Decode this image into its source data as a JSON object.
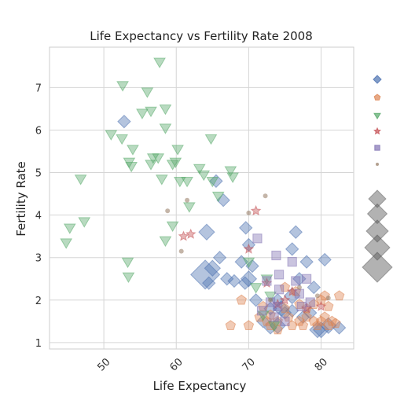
{
  "chart_data": {
    "type": "scatter",
    "title": "Life Expectancy vs Fertility Rate 2008",
    "xlabel": "Life Expectancy",
    "ylabel": "Fertility Rate",
    "xlim": [
      42.5,
      84.5
    ],
    "ylim": [
      0.85,
      7.95
    ],
    "xticks": [
      50,
      60,
      70,
      80
    ],
    "yticks": [
      1,
      2,
      3,
      4,
      5,
      6,
      7
    ],
    "grid": true,
    "legend_position": "right",
    "series": [
      {
        "marker": "diamond",
        "color": "#4c72b0",
        "points": [
          [
            52.8,
            6.2,
            2
          ],
          [
            65.5,
            4.8,
            2
          ],
          [
            66.5,
            4.35,
            2
          ],
          [
            64.2,
            3.6,
            3
          ],
          [
            66,
            3.0,
            2
          ],
          [
            65,
            2.75,
            3
          ],
          [
            64,
            2.6,
            5
          ],
          [
            64.5,
            2.4,
            2
          ],
          [
            67,
            2.5,
            2
          ],
          [
            68,
            2.45,
            2
          ],
          [
            69.5,
            2.4,
            2
          ],
          [
            70,
            2.5,
            3
          ],
          [
            69,
            2.9,
            2
          ],
          [
            69.6,
            3.7,
            2
          ],
          [
            70,
            3.3,
            2
          ],
          [
            70.5,
            2.8,
            2
          ],
          [
            71,
            2.0,
            2
          ],
          [
            72,
            1.5,
            2
          ],
          [
            73,
            1.8,
            2
          ],
          [
            74,
            2.0,
            2
          ],
          [
            74,
            1.4,
            3
          ],
          [
            75,
            1.7,
            2
          ],
          [
            76,
            2.1,
            3
          ],
          [
            77,
            2.5,
            2
          ],
          [
            78,
            2.9,
            2
          ],
          [
            79,
            2.3,
            2
          ],
          [
            76.5,
            3.6,
            2
          ],
          [
            76,
            3.2,
            2
          ],
          [
            79.5,
            1.3,
            3
          ],
          [
            80,
            1.3,
            3
          ],
          [
            81,
            1.4,
            3
          ],
          [
            82.5,
            1.35,
            2
          ],
          [
            80.5,
            2.95,
            2
          ],
          [
            76,
            1.75,
            2
          ],
          [
            77.5,
            1.6,
            2
          ],
          [
            73,
            1.35,
            2
          ],
          [
            78.5,
            1.7,
            2
          ],
          [
            74.5,
            1.8,
            3
          ]
        ]
      },
      {
        "marker": "pentagon",
        "color": "#dd8452",
        "points": [
          [
            67.5,
            1.4,
            1
          ],
          [
            69,
            2.0,
            1
          ],
          [
            70,
            1.4,
            1
          ],
          [
            71.5,
            1.6,
            1
          ],
          [
            72.5,
            1.5,
            1
          ],
          [
            73,
            1.4,
            1
          ],
          [
            74,
            1.5,
            1
          ],
          [
            75,
            1.8,
            1
          ],
          [
            75.5,
            1.6,
            1
          ],
          [
            76,
            1.4,
            1
          ],
          [
            77,
            1.5,
            1
          ],
          [
            77.5,
            1.4,
            1
          ],
          [
            78,
            1.6,
            1
          ],
          [
            79,
            1.5,
            1
          ],
          [
            79.5,
            1.4,
            1
          ],
          [
            80,
            1.5,
            1
          ],
          [
            80.5,
            1.6,
            1
          ],
          [
            81,
            1.4,
            1
          ],
          [
            81.5,
            1.5,
            1
          ],
          [
            82,
            1.45,
            1
          ],
          [
            82.5,
            2.1,
            1
          ],
          [
            80,
            2.0,
            1
          ],
          [
            79,
            1.9,
            1
          ],
          [
            78,
            1.8,
            1
          ],
          [
            77,
            1.9,
            1
          ],
          [
            76.5,
            2.2,
            1
          ],
          [
            75,
            2.3,
            1
          ],
          [
            74,
            1.3,
            1
          ],
          [
            73,
            1.65,
            1
          ],
          [
            72,
            1.85,
            1
          ],
          [
            80.5,
            2.1,
            1
          ],
          [
            81,
            1.85,
            1
          ]
        ]
      },
      {
        "marker": "triangle-down",
        "color": "#55a868",
        "points": [
          [
            57.7,
            7.6
          ],
          [
            52.6,
            7.05
          ],
          [
            56,
            6.9
          ],
          [
            55.3,
            6.4
          ],
          [
            56.5,
            6.45
          ],
          [
            58.5,
            6.5
          ],
          [
            58.5,
            6.05
          ],
          [
            51,
            5.9
          ],
          [
            52.5,
            5.8
          ],
          [
            54,
            5.55
          ],
          [
            53.5,
            5.25
          ],
          [
            53.8,
            5.15
          ],
          [
            56.8,
            5.35
          ],
          [
            57.5,
            5.35
          ],
          [
            56.5,
            5.2
          ],
          [
            58,
            4.85
          ],
          [
            59.5,
            5.2
          ],
          [
            59.9,
            5.25
          ],
          [
            60.2,
            5.55
          ],
          [
            64.8,
            5.8
          ],
          [
            63.2,
            5.1
          ],
          [
            63.8,
            4.95
          ],
          [
            65,
            4.8
          ],
          [
            67.5,
            5.05
          ],
          [
            67.8,
            4.9
          ],
          [
            60.5,
            4.8
          ],
          [
            61.5,
            4.8
          ],
          [
            61.8,
            4.2
          ],
          [
            59.5,
            3.75
          ],
          [
            58.5,
            3.4
          ],
          [
            46.8,
            4.85
          ],
          [
            47.3,
            3.85
          ],
          [
            45.3,
            3.7
          ],
          [
            44.8,
            3.35
          ],
          [
            53.3,
            2.9
          ],
          [
            53.4,
            2.55
          ],
          [
            70,
            2.9
          ],
          [
            71,
            2.3
          ],
          [
            72.5,
            2.5
          ],
          [
            73,
            2.1
          ],
          [
            72,
            1.65
          ],
          [
            73.5,
            1.4
          ],
          [
            65.8,
            4.45
          ]
        ]
      },
      {
        "marker": "star",
        "color": "#c44e52",
        "points": [
          [
            61,
            3.5
          ],
          [
            62,
            3.55
          ],
          [
            71,
            4.1
          ],
          [
            70,
            3.2
          ],
          [
            72.5,
            2.4
          ],
          [
            74,
            1.9
          ],
          [
            75,
            2.0
          ],
          [
            78,
            1.8
          ],
          [
            76,
            2.2
          ],
          [
            80,
            1.85
          ]
        ]
      },
      {
        "marker": "square",
        "color": "#8172b3",
        "points": [
          [
            71.2,
            3.45,
            2
          ],
          [
            72.5,
            2.45,
            2
          ],
          [
            73,
            1.95,
            2
          ],
          [
            73.8,
            3.05,
            2
          ],
          [
            74.2,
            2.6,
            2
          ],
          [
            74.2,
            2.25,
            2
          ],
          [
            74,
            1.85,
            2
          ],
          [
            73.5,
            1.6,
            2
          ],
          [
            75,
            1.5,
            2
          ],
          [
            76.5,
            2.45,
            2
          ],
          [
            77,
            2.15,
            2
          ],
          [
            77.3,
            1.85,
            2
          ],
          [
            78,
            2.5,
            2
          ],
          [
            78.5,
            1.95,
            2
          ],
          [
            71.8,
            1.75,
            2
          ],
          [
            76,
            2.9,
            2
          ]
        ]
      },
      {
        "marker": "circle",
        "color": "#937860",
        "points": [
          [
            58.8,
            4.1
          ],
          [
            60.7,
            3.15
          ],
          [
            61.5,
            4.35
          ],
          [
            70,
            4.05
          ],
          [
            72.3,
            4.45
          ],
          [
            79.5,
            2.1
          ],
          [
            81,
            2.05
          ],
          [
            77,
            2.3
          ],
          [
            73,
            2.0
          ]
        ]
      }
    ],
    "size_legend_steps": [
      1,
      2,
      3,
      4,
      5
    ]
  }
}
